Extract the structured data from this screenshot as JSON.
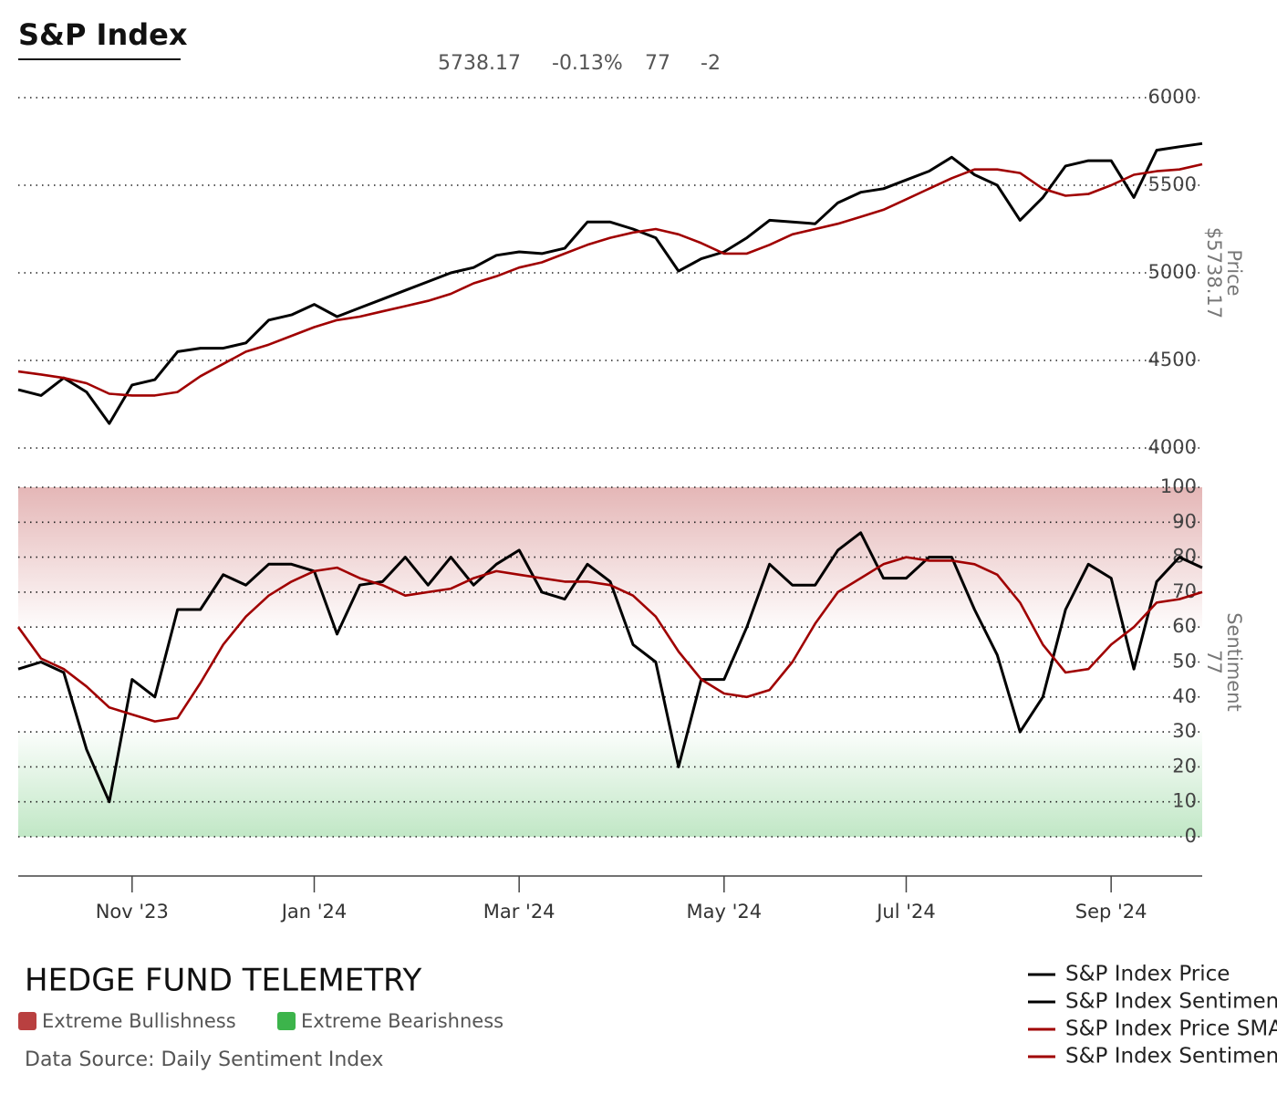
{
  "title": "S&P Index",
  "stats": [
    "5738.17",
    "-0.13%",
    "77",
    "-2"
  ],
  "chart_data": [
    {
      "type": "line",
      "y_label": "Price",
      "y_value_label": "$5738.17",
      "ylim": [
        4000,
        6000
      ],
      "yticks": [
        4000,
        4500,
        5000,
        5500,
        6000
      ],
      "grid": true,
      "series": [
        {
          "name": "S&P Index Price",
          "color": "#000000",
          "values": [
            4333,
            4300,
            4400,
            4320,
            4140,
            4360,
            4390,
            4550,
            4570,
            4570,
            4600,
            4730,
            4760,
            4820,
            4750,
            4800,
            4850,
            4900,
            4950,
            5000,
            5030,
            5100,
            5120,
            5110,
            5140,
            5290,
            5290,
            5250,
            5200,
            5010,
            5080,
            5120,
            5200,
            5300,
            5290,
            5280,
            5400,
            5460,
            5480,
            5530,
            5580,
            5660,
            5560,
            5500,
            5300,
            5430,
            5610,
            5640,
            5640,
            5430,
            5700,
            5720,
            5738
          ]
        },
        {
          "name": "S&P Index Price SMA",
          "color": "#a00000",
          "values": [
            4437,
            4420,
            4400,
            4370,
            4310,
            4300,
            4300,
            4320,
            4410,
            4480,
            4550,
            4590,
            4640,
            4690,
            4730,
            4750,
            4780,
            4810,
            4840,
            4880,
            4940,
            4980,
            5030,
            5060,
            5110,
            5160,
            5200,
            5230,
            5250,
            5220,
            5170,
            5110,
            5110,
            5160,
            5220,
            5250,
            5280,
            5320,
            5360,
            5420,
            5480,
            5540,
            5590,
            5590,
            5570,
            5480,
            5440,
            5450,
            5500,
            5560,
            5580,
            5590,
            5620
          ]
        }
      ]
    },
    {
      "type": "line",
      "y_label": "Sentiment",
      "y_value_label": "77",
      "ylim": [
        0,
        100
      ],
      "yticks": [
        0,
        10,
        20,
        30,
        40,
        50,
        60,
        70,
        80,
        90,
        100
      ],
      "grid": true,
      "zones": [
        {
          "name": "Extreme Bullishness",
          "range": [
            60,
            100
          ],
          "color": "#b94040"
        },
        {
          "name": "Extreme Bearishness",
          "range": [
            0,
            30
          ],
          "color": "#3cb44b"
        }
      ],
      "categories": [
        null,
        null,
        null,
        null,
        null,
        "Nov '23",
        null,
        null,
        null,
        null,
        null,
        null,
        null,
        "Jan '24",
        null,
        null,
        null,
        null,
        null,
        null,
        null,
        null,
        "Mar '24",
        null,
        null,
        null,
        null,
        null,
        null,
        null,
        null,
        "May '24",
        null,
        null,
        null,
        null,
        null,
        null,
        null,
        "Jul '24",
        null,
        null,
        null,
        null,
        null,
        null,
        null,
        null,
        "Sep '24",
        null,
        null,
        null,
        null
      ],
      "series": [
        {
          "name": "S&P Index Sentiment",
          "color": "#000000",
          "values": [
            48,
            50,
            47,
            25,
            10,
            45,
            40,
            65,
            65,
            75,
            72,
            78,
            78,
            76,
            58,
            72,
            73,
            80,
            72,
            80,
            72,
            78,
            82,
            70,
            68,
            78,
            73,
            55,
            50,
            20,
            45,
            45,
            60,
            78,
            72,
            72,
            82,
            87,
            74,
            74,
            80,
            80,
            65,
            52,
            30,
            40,
            65,
            78,
            74,
            48,
            73,
            80,
            77
          ]
        },
        {
          "name": "S&P Index Sentiment SMA",
          "color": "#a00000",
          "values": [
            60,
            51,
            48,
            43,
            37,
            35,
            33,
            34,
            44,
            55,
            63,
            69,
            73,
            76,
            77,
            74,
            72,
            69,
            70,
            71,
            74,
            76,
            75,
            74,
            73,
            73,
            72,
            69,
            63,
            53,
            45,
            41,
            40,
            42,
            50,
            61,
            70,
            74,
            78,
            80,
            79,
            79,
            78,
            75,
            67,
            55,
            47,
            48,
            55,
            60,
            67,
            68,
            70
          ]
        }
      ]
    }
  ],
  "footer": {
    "brand": "HEDGE FUND TELEMETRY",
    "source": "Data Source: Daily Sentiment Index"
  }
}
